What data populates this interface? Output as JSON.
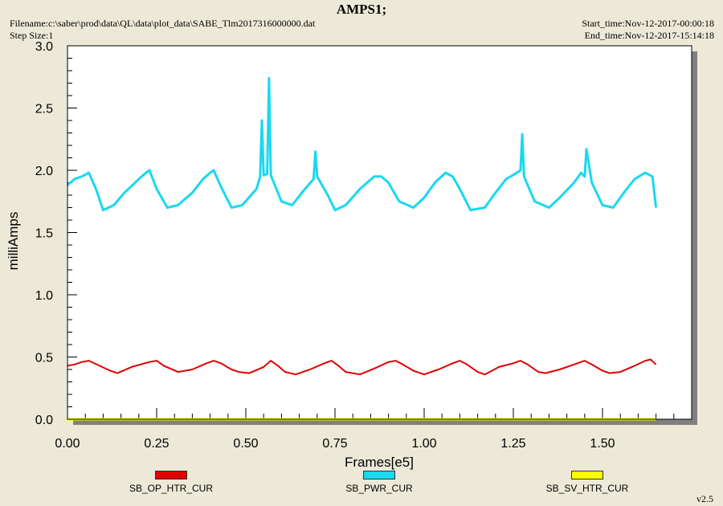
{
  "header": {
    "title": "AMPS1;",
    "filename": "Filename:c:\\saber\\prod\\data\\QL\\data\\plot_data\\SABE_Tlm2017316000000.dat",
    "step_size": "Step Size:1",
    "start_time": "Start_time:Nov-12-2017-00:00:18",
    "end_time": "End_time:Nov-12-2017-15:14:18",
    "version": "v2.5"
  },
  "chart_data": {
    "type": "line",
    "title": "AMPS1;",
    "xlabel": "Frames[e5]",
    "ylabel": "milliAmps",
    "xlim": [
      0.0,
      1.75
    ],
    "ylim": [
      0.0,
      3.0
    ],
    "x_ticks": [
      0.0,
      0.25,
      0.5,
      0.75,
      1.0,
      1.25,
      1.5
    ],
    "x_tick_labels": [
      "0.00",
      "0.25",
      "0.50",
      "0.75",
      "1.00",
      "1.25",
      "1.50"
    ],
    "y_ticks": [
      0.0,
      0.5,
      1.0,
      1.5,
      2.0,
      2.5,
      3.0
    ],
    "y_tick_labels": [
      "0.0",
      "0.5",
      "1.0",
      "1.5",
      "2.0",
      "2.5",
      "3.0"
    ],
    "grid": false,
    "legend_position": "bottom",
    "series": [
      {
        "name": "SB_OP_HTR_CUR",
        "color": "#e00000",
        "x": [
          0.0,
          0.02,
          0.04,
          0.06,
          0.09,
          0.12,
          0.14,
          0.18,
          0.23,
          0.25,
          0.27,
          0.31,
          0.35,
          0.39,
          0.41,
          0.43,
          0.46,
          0.48,
          0.51,
          0.55,
          0.57,
          0.59,
          0.61,
          0.64,
          0.68,
          0.72,
          0.74,
          0.76,
          0.78,
          0.82,
          0.87,
          0.9,
          0.92,
          0.94,
          0.97,
          1.0,
          1.04,
          1.08,
          1.1,
          1.12,
          1.15,
          1.17,
          1.21,
          1.25,
          1.27,
          1.29,
          1.32,
          1.34,
          1.38,
          1.43,
          1.45,
          1.47,
          1.5,
          1.52,
          1.55,
          1.59,
          1.62,
          1.635,
          1.65
        ],
        "values": [
          0.43,
          0.44,
          0.46,
          0.47,
          0.43,
          0.39,
          0.37,
          0.42,
          0.46,
          0.47,
          0.43,
          0.38,
          0.4,
          0.45,
          0.47,
          0.45,
          0.4,
          0.38,
          0.37,
          0.42,
          0.47,
          0.43,
          0.38,
          0.36,
          0.4,
          0.45,
          0.47,
          0.43,
          0.38,
          0.36,
          0.42,
          0.46,
          0.47,
          0.44,
          0.39,
          0.36,
          0.4,
          0.45,
          0.47,
          0.44,
          0.38,
          0.36,
          0.42,
          0.45,
          0.47,
          0.44,
          0.38,
          0.37,
          0.4,
          0.45,
          0.47,
          0.44,
          0.39,
          0.37,
          0.38,
          0.43,
          0.47,
          0.48,
          0.44
        ]
      },
      {
        "name": "SB_PWR_CUR",
        "color": "#1ad8f0",
        "x": [
          0.0,
          0.02,
          0.04,
          0.06,
          0.08,
          0.1,
          0.13,
          0.16,
          0.2,
          0.22,
          0.23,
          0.25,
          0.28,
          0.31,
          0.35,
          0.38,
          0.4,
          0.41,
          0.43,
          0.46,
          0.49,
          0.53,
          0.54,
          0.545,
          0.55,
          0.56,
          0.565,
          0.57,
          0.6,
          0.63,
          0.66,
          0.69,
          0.695,
          0.7,
          0.73,
          0.75,
          0.78,
          0.82,
          0.86,
          0.88,
          0.9,
          0.93,
          0.97,
          1.0,
          1.03,
          1.06,
          1.08,
          1.1,
          1.13,
          1.17,
          1.2,
          1.23,
          1.26,
          1.27,
          1.275,
          1.28,
          1.31,
          1.35,
          1.38,
          1.42,
          1.44,
          1.45,
          1.455,
          1.47,
          1.5,
          1.53,
          1.56,
          1.59,
          1.62,
          1.64,
          1.65
        ],
        "values": [
          1.88,
          1.93,
          1.95,
          1.98,
          1.85,
          1.68,
          1.72,
          1.82,
          1.93,
          1.98,
          2.0,
          1.85,
          1.7,
          1.72,
          1.82,
          1.93,
          1.98,
          2.0,
          1.87,
          1.7,
          1.72,
          1.85,
          1.95,
          2.4,
          1.96,
          1.97,
          2.74,
          1.96,
          1.75,
          1.72,
          1.83,
          1.93,
          2.15,
          1.95,
          1.8,
          1.68,
          1.72,
          1.85,
          1.95,
          1.95,
          1.9,
          1.75,
          1.7,
          1.78,
          1.9,
          1.98,
          1.95,
          1.85,
          1.68,
          1.7,
          1.82,
          1.93,
          1.98,
          2.0,
          2.29,
          1.95,
          1.75,
          1.7,
          1.78,
          1.9,
          1.98,
          1.95,
          2.17,
          1.9,
          1.72,
          1.7,
          1.82,
          1.93,
          1.98,
          1.95,
          1.7
        ]
      },
      {
        "name": "SB_SV_HTR_CUR",
        "color": "#ffff00",
        "x": [
          0.0,
          1.65
        ],
        "values": [
          0.0,
          0.0
        ]
      }
    ]
  }
}
